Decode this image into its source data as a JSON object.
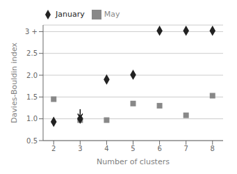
{
  "chart_data": {
    "type": "scatter",
    "x_label": "Number of clusters",
    "y_label": "Davies-Bouldin index",
    "x": [
      2,
      3,
      4,
      5,
      6,
      7,
      8
    ],
    "series": [
      {
        "name": "May",
        "color": "#888888",
        "marker": "square",
        "values": [
          1.45,
          0.97,
          0.97,
          1.35,
          1.3,
          1.08,
          1.53
        ]
      },
      {
        "name": "January",
        "color": "#222222",
        "marker": "diamond",
        "values": [
          0.93,
          1.0,
          1.9,
          2.01,
          3.02,
          3.02,
          3.02
        ]
      }
    ],
    "xlim": [
      1.6,
      8.4
    ],
    "xticks": [
      2,
      3,
      4,
      5,
      6,
      7,
      8
    ],
    "ylim": [
      0.5,
      3.15
    ],
    "yticks": [
      0.5,
      {
        "value": 1.0,
        "label": "1.0"
      },
      1.5,
      {
        "value": 2.0,
        "label": "2.0"
      },
      2.5,
      {
        "value": 3.0,
        "label": "3 +"
      }
    ],
    "annotations": [
      {
        "x": 3.0,
        "y_start": 1.22,
        "y": 1.02
      }
    ],
    "grid": "y",
    "legend": "top left"
  }
}
